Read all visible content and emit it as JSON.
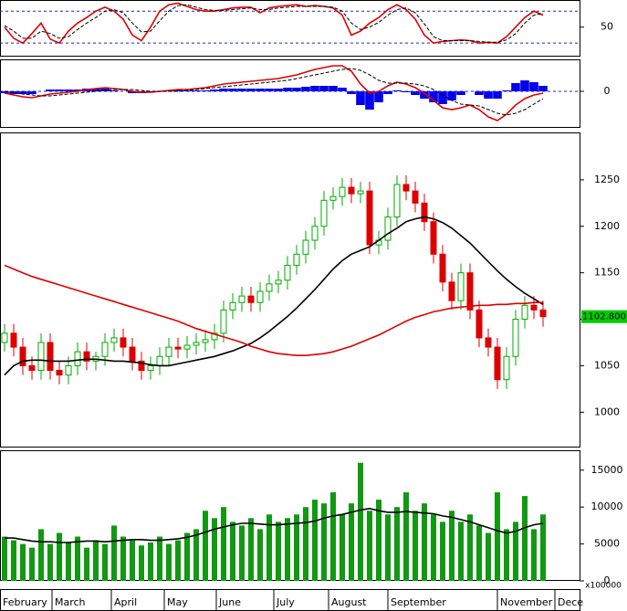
{
  "chart_data": [
    {
      "type": "line",
      "ylim": [
        13,
        84
      ],
      "yticks": [
        50
      ],
      "levels": [
        70,
        30
      ],
      "level_color": "#2222cc",
      "series": [
        {
          "name": "RSI",
          "style": "line",
          "color": "#dd0000",
          "values": [
            50,
            36,
            30,
            42,
            55,
            35,
            30,
            45,
            55,
            62,
            70,
            75,
            70,
            60,
            40,
            33,
            50,
            70,
            78,
            80,
            76,
            72,
            70,
            70,
            72,
            74,
            75,
            75,
            68,
            74,
            76,
            77,
            78,
            76,
            77,
            76,
            74,
            65,
            40,
            45,
            55,
            62,
            72,
            78,
            72,
            60,
            40,
            30,
            32,
            33,
            34,
            33,
            30,
            31,
            30,
            38,
            50,
            62,
            70,
            65
          ]
        },
        {
          "name": "Signal",
          "style": "dashed",
          "color": "#000000",
          "values": [
            52,
            45,
            36,
            36,
            45,
            42,
            36,
            38,
            47,
            55,
            62,
            70,
            72,
            68,
            55,
            44,
            45,
            58,
            70,
            77,
            78,
            75,
            72,
            71,
            71,
            72,
            73,
            74,
            72,
            72,
            74,
            75,
            76,
            76,
            76,
            76,
            75,
            70,
            55,
            47,
            50,
            56,
            65,
            72,
            74,
            68,
            54,
            38,
            33,
            33,
            33,
            33,
            32,
            31,
            31,
            34,
            42,
            55,
            65,
            67
          ]
        }
      ]
    },
    {
      "type": "line",
      "ylim": [
        -40,
        35
      ],
      "yticks": [
        0
      ],
      "levels": [
        0
      ],
      "level_color": "#2222cc",
      "series": [
        {
          "name": "Histogram",
          "style": "histogram",
          "color": "#0000ee",
          "values": [
            -2,
            -3,
            -3,
            -3,
            0,
            2,
            2,
            2,
            2,
            3,
            3,
            3,
            1,
            0,
            -2,
            -2,
            -1,
            0,
            1,
            2,
            1,
            1,
            1,
            2,
            3,
            3,
            3,
            3,
            3,
            3,
            3,
            4,
            4,
            5,
            6,
            6,
            6,
            4,
            -3,
            -15,
            -20,
            -12,
            -3,
            1,
            -1,
            -4,
            -8,
            -12,
            -14,
            -10,
            -4,
            0,
            -4,
            -8,
            -8,
            1,
            9,
            12,
            10,
            6
          ]
        },
        {
          "name": "MACD",
          "style": "line",
          "color": "#dd0000",
          "values": [
            -2,
            -4,
            -6,
            -7,
            -5,
            -3,
            -2,
            -1,
            0,
            2,
            3,
            4,
            3,
            2,
            0,
            -1,
            -1,
            0,
            1,
            2,
            2,
            3,
            4,
            6,
            8,
            9,
            10,
            11,
            12,
            13,
            14,
            16,
            18,
            21,
            24,
            26,
            28,
            28,
            22,
            8,
            -2,
            0,
            6,
            10,
            8,
            4,
            -2,
            -10,
            -18,
            -20,
            -18,
            -15,
            -20,
            -28,
            -32,
            -25,
            -15,
            -8,
            -4,
            -2
          ]
        },
        {
          "name": "Signal",
          "style": "dashed",
          "color": "#000000",
          "values": [
            0,
            -1,
            -3,
            -4,
            -5,
            -5,
            -4,
            -3,
            -2,
            -1,
            0,
            1,
            2,
            2,
            2,
            1,
            0,
            0,
            0,
            0,
            1,
            2,
            3,
            4,
            5,
            6,
            7,
            8,
            9,
            10,
            11,
            12,
            14,
            16,
            18,
            20,
            22,
            24,
            25,
            23,
            18,
            12,
            9,
            9,
            9,
            8,
            6,
            2,
            -4,
            -10,
            -14,
            -15,
            -16,
            -20,
            -24,
            -26,
            -24,
            -20,
            -14,
            -8
          ]
        }
      ]
    },
    {
      "type": "candlestick",
      "ylim": [
        962,
        1301
      ],
      "yticks": [
        1000,
        1050,
        1100,
        1150,
        1200,
        1250
      ],
      "up_color": "#00aa00",
      "down_color": "#dd0000",
      "open": [
        1075,
        1085,
        1070,
        1050,
        1045,
        1075,
        1045,
        1040,
        1050,
        1065,
        1055,
        1060,
        1075,
        1080,
        1070,
        1055,
        1045,
        1050,
        1060,
        1070,
        1068,
        1072,
        1075,
        1078,
        1085,
        1110,
        1118,
        1125,
        1118,
        1130,
        1138,
        1142,
        1158,
        1170,
        1185,
        1200,
        1228,
        1232,
        1242,
        1235,
        1238,
        1180,
        1185,
        1210,
        1245,
        1238,
        1225,
        1205,
        1170,
        1140,
        1120,
        1150,
        1110,
        1080,
        1070,
        1035,
        1060,
        1100,
        1115,
        1110
      ],
      "high": [
        1095,
        1095,
        1080,
        1060,
        1085,
        1085,
        1055,
        1060,
        1075,
        1075,
        1065,
        1085,
        1090,
        1090,
        1080,
        1065,
        1060,
        1070,
        1080,
        1080,
        1082,
        1085,
        1088,
        1095,
        1120,
        1128,
        1135,
        1135,
        1140,
        1148,
        1152,
        1168,
        1180,
        1195,
        1210,
        1238,
        1242,
        1252,
        1252,
        1248,
        1248,
        1195,
        1220,
        1255,
        1255,
        1248,
        1235,
        1215,
        1180,
        1150,
        1160,
        1160,
        1120,
        1090,
        1080,
        1070,
        1110,
        1125,
        1125,
        1120
      ],
      "low": [
        1065,
        1060,
        1040,
        1035,
        1035,
        1035,
        1030,
        1030,
        1040,
        1045,
        1045,
        1050,
        1065,
        1060,
        1045,
        1035,
        1035,
        1040,
        1050,
        1058,
        1058,
        1062,
        1065,
        1068,
        1075,
        1100,
        1108,
        1108,
        1108,
        1120,
        1128,
        1132,
        1148,
        1160,
        1175,
        1190,
        1218,
        1222,
        1225,
        1225,
        1170,
        1170,
        1175,
        1200,
        1228,
        1215,
        1195,
        1160,
        1130,
        1110,
        1110,
        1100,
        1070,
        1060,
        1025,
        1025,
        1050,
        1090,
        1100,
        1092
      ],
      "close": [
        1085,
        1070,
        1050,
        1045,
        1075,
        1045,
        1040,
        1050,
        1065,
        1055,
        1060,
        1075,
        1080,
        1070,
        1055,
        1045,
        1050,
        1060,
        1070,
        1068,
        1072,
        1075,
        1078,
        1085,
        1110,
        1118,
        1125,
        1118,
        1130,
        1138,
        1142,
        1158,
        1170,
        1185,
        1200,
        1228,
        1232,
        1242,
        1235,
        1238,
        1180,
        1185,
        1210,
        1245,
        1238,
        1225,
        1205,
        1170,
        1140,
        1120,
        1150,
        1110,
        1080,
        1070,
        1035,
        1060,
        1100,
        1115,
        1110,
        1102.8
      ],
      "last_price": {
        "value": 1102.8,
        "label": "1102.800"
      },
      "last_color": "#00cc00",
      "series": [
        {
          "name": "MA50",
          "style": "line",
          "color": "#000000",
          "values": [
            1040,
            1050,
            1055,
            1056,
            1056,
            1055,
            1055,
            1055,
            1056,
            1057,
            1057,
            1056,
            1055,
            1055,
            1054,
            1053,
            1051,
            1050,
            1050,
            1052,
            1054,
            1056,
            1058,
            1060,
            1063,
            1066,
            1070,
            1074,
            1080,
            1087,
            1095,
            1103,
            1112,
            1122,
            1132,
            1143,
            1154,
            1163,
            1170,
            1174,
            1178,
            1185,
            1192,
            1198,
            1205,
            1208,
            1210,
            1208,
            1204,
            1198,
            1190,
            1182,
            1172,
            1162,
            1152,
            1143,
            1135,
            1128,
            1122,
            1116
          ]
        },
        {
          "name": "MA200",
          "style": "line",
          "color": "#dd0000",
          "values": [
            1158,
            1154,
            1150,
            1146,
            1143,
            1140,
            1137,
            1134,
            1131,
            1128,
            1125,
            1122,
            1119,
            1116,
            1113,
            1110,
            1107,
            1104,
            1101,
            1098,
            1094,
            1090,
            1087,
            1084,
            1081,
            1078,
            1075,
            1071,
            1068,
            1065,
            1063,
            1062,
            1061,
            1061,
            1062,
            1063,
            1065,
            1068,
            1071,
            1075,
            1079,
            1083,
            1088,
            1093,
            1098,
            1102,
            1105,
            1108,
            1110,
            1112,
            1113,
            1114,
            1115,
            1115,
            1116,
            1116,
            1117,
            1117,
            1118,
            1118
          ]
        }
      ]
    },
    {
      "type": "bar",
      "ylim": [
        0,
        17700
      ],
      "yticks": [
        0,
        5000,
        10000,
        15000
      ],
      "unit_label": "x100000",
      "color": "#119911",
      "values": [
        6000,
        5500,
        5000,
        4500,
        7000,
        5000,
        6500,
        5200,
        6000,
        4500,
        5500,
        5000,
        7500,
        6000,
        5500,
        4800,
        5200,
        6000,
        5000,
        5500,
        6500,
        7000,
        9500,
        8500,
        10000,
        8000,
        7500,
        8500,
        7000,
        9000,
        8000,
        8500,
        9000,
        10000,
        11000,
        10500,
        12000,
        9000,
        10500,
        16000,
        9500,
        11000,
        9000,
        10000,
        12000,
        9500,
        10500,
        9000,
        8000,
        9500,
        8000,
        9000,
        7500,
        6500,
        12000,
        7000,
        8000,
        11500,
        7000,
        9000
      ],
      "series": [
        {
          "name": "Volume MA",
          "style": "line",
          "color": "#000000",
          "values": [
            5800,
            5800,
            5600,
            5400,
            5300,
            5300,
            5200,
            5200,
            5300,
            5400,
            5400,
            5300,
            5400,
            5500,
            5600,
            5600,
            5500,
            5500,
            5600,
            5700,
            5900,
            6200,
            6600,
            7000,
            7300,
            7600,
            7800,
            7800,
            7700,
            7600,
            7600,
            7700,
            7800,
            7900,
            8100,
            8500,
            8800,
            9000,
            9300,
            9600,
            9800,
            9500,
            9300,
            9300,
            9400,
            9300,
            9200,
            9100,
            8800,
            8600,
            8300,
            8000,
            7600,
            7200,
            6800,
            6500,
            6700,
            7200,
            7600,
            7800
          ]
        }
      ]
    }
  ],
  "x_axis": {
    "xlim": [
      0,
      63.5
    ],
    "xticks": [
      {
        "value": 0,
        "label": "February"
      },
      {
        "value": 5.7,
        "label": "March"
      },
      {
        "value": 12.2,
        "label": "April"
      },
      {
        "value": 18,
        "label": "May"
      },
      {
        "value": 23.7,
        "label": "June"
      },
      {
        "value": 30,
        "label": "July"
      },
      {
        "value": 36,
        "label": "August"
      },
      {
        "value": 42.5,
        "label": "September"
      },
      {
        "value": 54.5,
        "label": "November"
      },
      {
        "value": 60.8,
        "label": "Dece"
      }
    ]
  }
}
